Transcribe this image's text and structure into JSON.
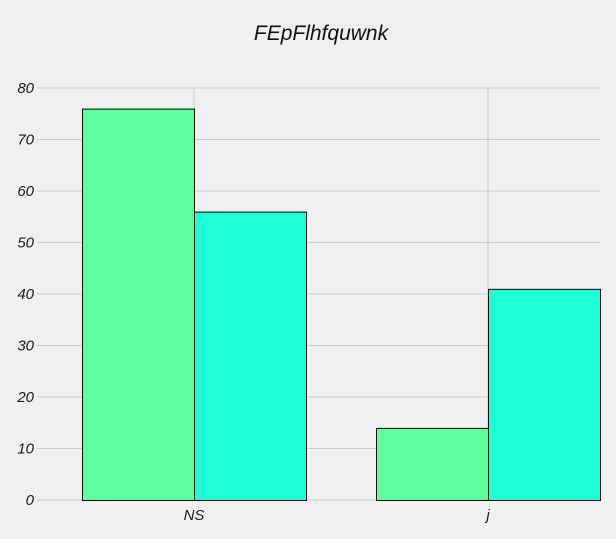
{
  "chart_data": {
    "type": "bar",
    "title": "FEpFlhfquwnk",
    "xlabel": "",
    "ylabel": "",
    "categories": [
      "NS",
      "j"
    ],
    "series": [
      {
        "values": [
          76,
          14
        ],
        "color": "#5bff9b"
      },
      {
        "values": [
          56,
          41
        ],
        "color": "#1effd9"
      }
    ],
    "ylim": [
      0,
      80
    ],
    "yticks": [
      0,
      10,
      20,
      30,
      40,
      50,
      60,
      70,
      80
    ],
    "grid": true,
    "legend": "none"
  },
  "style": {
    "background": "#f0f0f0",
    "grid_color": "#cbcbcb",
    "bar_edge_color": "#000000"
  }
}
